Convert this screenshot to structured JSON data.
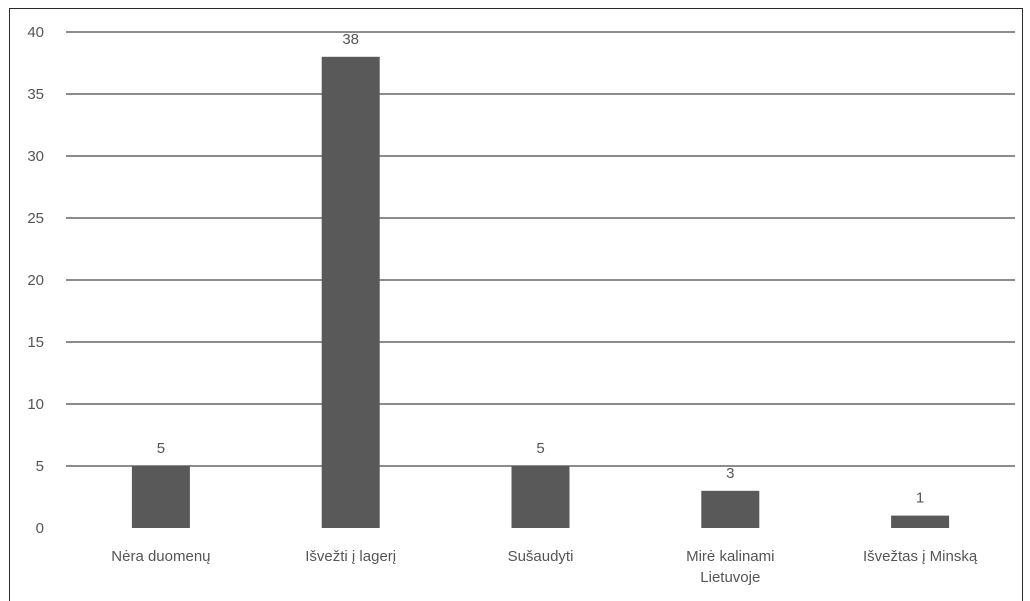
{
  "chart_data": {
    "type": "bar",
    "title": "",
    "xlabel": "",
    "ylabel": "",
    "categories": [
      [
        "Nėra duomenų"
      ],
      [
        "Išvežti į lagerį"
      ],
      [
        "Sušaudyti"
      ],
      [
        "Mirė kalinami",
        "Lietuvoje"
      ],
      [
        "Išvežtas į Minską"
      ]
    ],
    "values": [
      5,
      38,
      5,
      3,
      1
    ],
    "data_labels": [
      "5",
      "38",
      "5",
      "3",
      "1"
    ],
    "ylim": [
      0,
      40
    ],
    "yticks": [
      0,
      5,
      10,
      15,
      20,
      25,
      30,
      35,
      40
    ],
    "grid": true,
    "legend": "none",
    "bar_color": "#595959",
    "grid_color": "#1a1a1a",
    "text_color": "#555555"
  }
}
